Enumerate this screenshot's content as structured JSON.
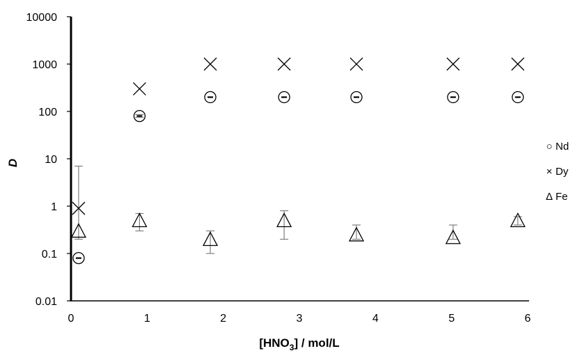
{
  "chart_data": {
    "type": "scatter",
    "title": "",
    "xlabel": "[HNO3] / mol/L",
    "xlabel_main": "[HNO",
    "xlabel_sub": "3",
    "xlabel_rest": "] / mol/L",
    "ylabel": "D",
    "xlim": [
      0,
      6
    ],
    "ylim": [
      0.01,
      10000
    ],
    "yscale": "log",
    "grid": false,
    "legend_position": "right",
    "x_ticks": [
      "0",
      "1",
      "2",
      "3",
      "4",
      "5",
      "6"
    ],
    "y_ticks": [
      "0.01",
      "0.1",
      "1",
      "10",
      "100",
      "1000",
      "10000"
    ],
    "series": [
      {
        "name": "Nd",
        "marker": "circle-minus",
        "legend_marker": "circle",
        "legend_symbol": "○",
        "points": [
          {
            "x": 0.1,
            "y": 0.08
          },
          {
            "x": 0.9,
            "y": 80,
            "err_low": 75,
            "err_high": 86
          },
          {
            "x": 1.83,
            "y": 200
          },
          {
            "x": 2.8,
            "y": 200
          },
          {
            "x": 3.75,
            "y": 200
          },
          {
            "x": 5.02,
            "y": 200
          },
          {
            "x": 5.87,
            "y": 200
          }
        ]
      },
      {
        "name": "Dy",
        "marker": "x",
        "legend_marker": "x",
        "legend_symbol": "×",
        "points": [
          {
            "x": 0.1,
            "y": 0.9
          },
          {
            "x": 0.9,
            "y": 300
          },
          {
            "x": 1.83,
            "y": 1000
          },
          {
            "x": 2.8,
            "y": 1000
          },
          {
            "x": 3.75,
            "y": 1000
          },
          {
            "x": 5.02,
            "y": 1000
          },
          {
            "x": 5.87,
            "y": 1000
          }
        ]
      },
      {
        "name": "Fe",
        "marker": "triangle",
        "legend_marker": "triangle",
        "legend_symbol": "Δ",
        "points": [
          {
            "x": 0.1,
            "y": 0.3,
            "err_low": 0.2,
            "err_high": 7
          },
          {
            "x": 0.9,
            "y": 0.5,
            "err_low": 0.3,
            "err_high": 0.7
          },
          {
            "x": 1.83,
            "y": 0.2,
            "err_low": 0.1,
            "err_high": 0.3
          },
          {
            "x": 2.8,
            "y": 0.5,
            "err_low": 0.2,
            "err_high": 0.8
          },
          {
            "x": 3.75,
            "y": 0.25,
            "err_low": 0.2,
            "err_high": 0.4
          },
          {
            "x": 5.02,
            "y": 0.22,
            "err_low": 0.2,
            "err_high": 0.4
          },
          {
            "x": 5.87,
            "y": 0.5,
            "err_low": 0.4,
            "err_high": 0.6
          }
        ]
      }
    ]
  }
}
